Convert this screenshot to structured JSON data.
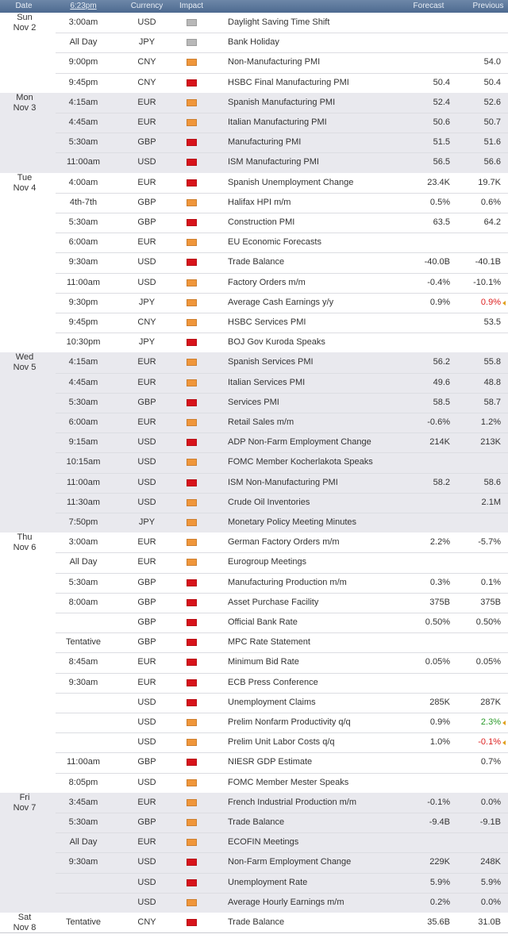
{
  "header": {
    "date": "Date",
    "time": "6:23pm",
    "currency": "Currency",
    "impact": "Impact",
    "forecast": "Forecast",
    "previous": "Previous"
  },
  "days": [
    {
      "day": "Sun",
      "date": "Nov 2",
      "events": [
        {
          "time": "3:00am",
          "currency": "USD",
          "impact": "#b8b8b8",
          "event": "Daylight Saving Time Shift"
        },
        {
          "time": "All Day",
          "currency": "JPY",
          "impact": "#b8b8b8",
          "event": "Bank Holiday"
        },
        {
          "time": "9:00pm",
          "currency": "CNY",
          "impact": "#f0963a",
          "event": "Non-Manufacturing PMI",
          "previous": "54.0"
        },
        {
          "time": "9:45pm",
          "currency": "CNY",
          "impact": "#d8131b",
          "event": "HSBC Final Manufacturing PMI",
          "forecast": "50.4",
          "previous": "50.4"
        }
      ]
    },
    {
      "day": "Mon",
      "date": "Nov 3",
      "events": [
        {
          "time": "4:15am",
          "currency": "EUR",
          "impact": "#f0963a",
          "event": "Spanish Manufacturing PMI",
          "forecast": "52.4",
          "previous": "52.6"
        },
        {
          "time": "4:45am",
          "currency": "EUR",
          "impact": "#f0963a",
          "event": "Italian Manufacturing PMI",
          "forecast": "50.6",
          "previous": "50.7"
        },
        {
          "time": "5:30am",
          "currency": "GBP",
          "impact": "#d8131b",
          "event": "Manufacturing PMI",
          "forecast": "51.5",
          "previous": "51.6"
        },
        {
          "time": "11:00am",
          "currency": "USD",
          "impact": "#d8131b",
          "event": "ISM Manufacturing PMI",
          "forecast": "56.5",
          "previous": "56.6"
        }
      ]
    },
    {
      "day": "Tue",
      "date": "Nov 4",
      "events": [
        {
          "time": "4:00am",
          "currency": "EUR",
          "impact": "#d8131b",
          "event": "Spanish Unemployment Change",
          "forecast": "23.4K",
          "previous": "19.7K"
        },
        {
          "time": "4th-7th",
          "currency": "GBP",
          "impact": "#f0963a",
          "event": "Halifax HPI m/m",
          "forecast": "0.5%",
          "previous": "0.6%"
        },
        {
          "time": "5:30am",
          "currency": "GBP",
          "impact": "#d8131b",
          "event": "Construction PMI",
          "forecast": "63.5",
          "previous": "64.2"
        },
        {
          "time": "6:00am",
          "currency": "EUR",
          "impact": "#f0963a",
          "event": "EU Economic Forecasts"
        },
        {
          "time": "9:30am",
          "currency": "USD",
          "impact": "#d8131b",
          "event": "Trade Balance",
          "forecast": "-40.0B",
          "previous": "-40.1B"
        },
        {
          "time": "11:00am",
          "currency": "USD",
          "impact": "#f0963a",
          "event": "Factory Orders m/m",
          "forecast": "-0.4%",
          "previous": "-10.1%"
        },
        {
          "time": "9:30pm",
          "currency": "JPY",
          "impact": "#f0963a",
          "event": "Average Cash Earnings y/y",
          "forecast": "0.9%",
          "previous": "0.9%",
          "previous_color": "#dd2222"
        },
        {
          "time": "9:45pm",
          "currency": "CNY",
          "impact": "#f0963a",
          "event": "HSBC Services PMI",
          "previous": "53.5"
        },
        {
          "time": "10:30pm",
          "currency": "JPY",
          "impact": "#d8131b",
          "event": "BOJ Gov Kuroda Speaks"
        }
      ]
    },
    {
      "day": "Wed",
      "date": "Nov 5",
      "events": [
        {
          "time": "4:15am",
          "currency": "EUR",
          "impact": "#f0963a",
          "event": "Spanish Services PMI",
          "forecast": "56.2",
          "previous": "55.8"
        },
        {
          "time": "4:45am",
          "currency": "EUR",
          "impact": "#f0963a",
          "event": "Italian Services PMI",
          "forecast": "49.6",
          "previous": "48.8"
        },
        {
          "time": "5:30am",
          "currency": "GBP",
          "impact": "#d8131b",
          "event": "Services PMI",
          "forecast": "58.5",
          "previous": "58.7"
        },
        {
          "time": "6:00am",
          "currency": "EUR",
          "impact": "#f0963a",
          "event": "Retail Sales m/m",
          "forecast": "-0.6%",
          "previous": "1.2%"
        },
        {
          "time": "9:15am",
          "currency": "USD",
          "impact": "#d8131b",
          "event": "ADP Non-Farm Employment Change",
          "forecast": "214K",
          "previous": "213K"
        },
        {
          "time": "10:15am",
          "currency": "USD",
          "impact": "#f0963a",
          "event": "FOMC Member Kocherlakota Speaks"
        },
        {
          "time": "11:00am",
          "currency": "USD",
          "impact": "#d8131b",
          "event": "ISM Non-Manufacturing PMI",
          "forecast": "58.2",
          "previous": "58.6"
        },
        {
          "time": "11:30am",
          "currency": "USD",
          "impact": "#f0963a",
          "event": "Crude Oil Inventories",
          "previous": "2.1M"
        },
        {
          "time": "7:50pm",
          "currency": "JPY",
          "impact": "#f0963a",
          "event": "Monetary Policy Meeting Minutes"
        }
      ]
    },
    {
      "day": "Thu",
      "date": "Nov 6",
      "events": [
        {
          "time": "3:00am",
          "currency": "EUR",
          "impact": "#f0963a",
          "event": "German Factory Orders m/m",
          "forecast": "2.2%",
          "previous": "-5.7%"
        },
        {
          "time": "All Day",
          "currency": "EUR",
          "impact": "#f0963a",
          "event": "Eurogroup Meetings"
        },
        {
          "time": "5:30am",
          "currency": "GBP",
          "impact": "#d8131b",
          "event": "Manufacturing Production m/m",
          "forecast": "0.3%",
          "previous": "0.1%"
        },
        {
          "time": "8:00am",
          "currency": "GBP",
          "impact": "#d8131b",
          "event": "Asset Purchase Facility",
          "forecast": "375B",
          "previous": "375B"
        },
        {
          "currency": "GBP",
          "impact": "#d8131b",
          "event": "Official Bank Rate",
          "forecast": "0.50%",
          "previous": "0.50%"
        },
        {
          "time": "Tentative",
          "currency": "GBP",
          "impact": "#d8131b",
          "event": "MPC Rate Statement"
        },
        {
          "time": "8:45am",
          "currency": "EUR",
          "impact": "#d8131b",
          "event": "Minimum Bid Rate",
          "forecast": "0.05%",
          "previous": "0.05%"
        },
        {
          "time": "9:30am",
          "currency": "EUR",
          "impact": "#d8131b",
          "event": "ECB Press Conference"
        },
        {
          "currency": "USD",
          "impact": "#d8131b",
          "event": "Unemployment Claims",
          "forecast": "285K",
          "previous": "287K"
        },
        {
          "currency": "USD",
          "impact": "#f0963a",
          "event": "Prelim Nonfarm Productivity q/q",
          "forecast": "0.9%",
          "previous": "2.3%",
          "previous_color": "#2a9a2a"
        },
        {
          "currency": "USD",
          "impact": "#f0963a",
          "event": "Prelim Unit Labor Costs q/q",
          "forecast": "1.0%",
          "previous": "-0.1%",
          "previous_color": "#dd2222"
        },
        {
          "time": "11:00am",
          "currency": "GBP",
          "impact": "#d8131b",
          "event": "NIESR GDP Estimate",
          "previous": "0.7%"
        },
        {
          "time": "8:05pm",
          "currency": "USD",
          "impact": "#f0963a",
          "event": "FOMC Member Mester Speaks"
        }
      ]
    },
    {
      "day": "Fri",
      "date": "Nov 7",
      "events": [
        {
          "time": "3:45am",
          "currency": "EUR",
          "impact": "#f0963a",
          "event": "French Industrial Production m/m",
          "forecast": "-0.1%",
          "previous": "0.0%"
        },
        {
          "time": "5:30am",
          "currency": "GBP",
          "impact": "#f0963a",
          "event": "Trade Balance",
          "forecast": "-9.4B",
          "previous": "-9.1B"
        },
        {
          "time": "All Day",
          "currency": "EUR",
          "impact": "#f0963a",
          "event": "ECOFIN Meetings"
        },
        {
          "time": "9:30am",
          "currency": "USD",
          "impact": "#d8131b",
          "event": "Non-Farm Employment Change",
          "forecast": "229K",
          "previous": "248K"
        },
        {
          "currency": "USD",
          "impact": "#d8131b",
          "event": "Unemployment Rate",
          "forecast": "5.9%",
          "previous": "5.9%"
        },
        {
          "currency": "USD",
          "impact": "#f0963a",
          "event": "Average Hourly Earnings m/m",
          "forecast": "0.2%",
          "previous": "0.0%"
        }
      ]
    },
    {
      "day": "Sat",
      "date": "Nov 8",
      "events": [
        {
          "time": "Tentative",
          "currency": "CNY",
          "impact": "#d8131b",
          "event": "Trade Balance",
          "forecast": "35.6B",
          "previous": "31.0B"
        }
      ]
    }
  ]
}
